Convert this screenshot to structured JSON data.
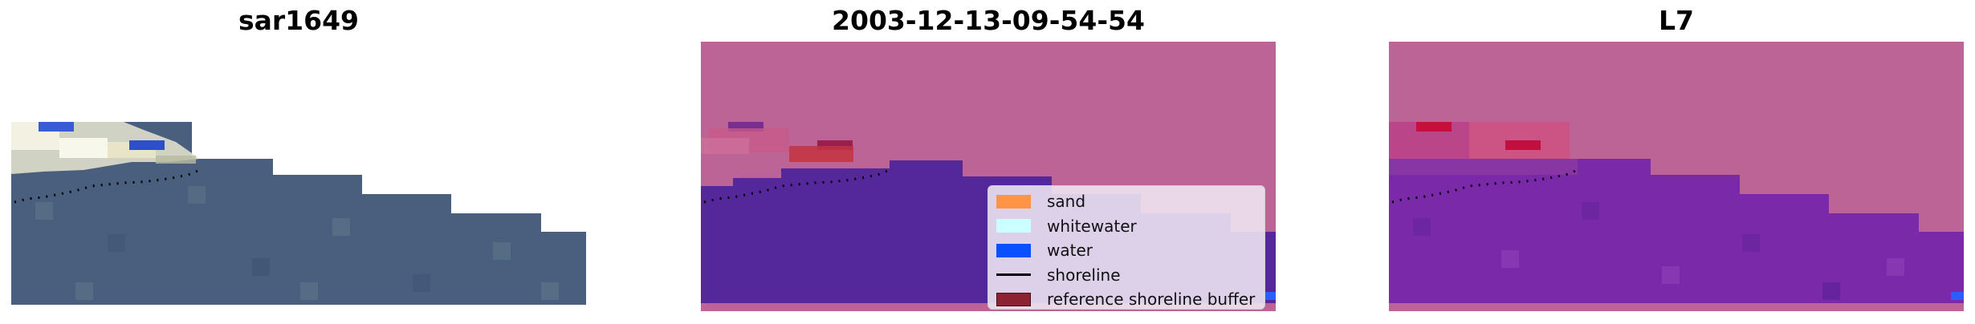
{
  "panels": [
    {
      "title": "sar1649"
    },
    {
      "title": "2003-12-13-09-54-54"
    },
    {
      "title": "L7"
    }
  ],
  "legend": {
    "items": [
      {
        "label": "sand",
        "color": "#ff9447",
        "kind": "patch"
      },
      {
        "label": "whitewater",
        "color": "#ccffff",
        "kind": "patch"
      },
      {
        "label": "water",
        "color": "#0a50ff",
        "kind": "patch"
      },
      {
        "label": "shoreline",
        "color": "#000000",
        "kind": "line"
      },
      {
        "label": "reference shoreline buffer",
        "color": "#8b2332",
        "kind": "patch"
      }
    ]
  },
  "colors": {
    "land_overlay": "#bd6497",
    "water_class": "#54279a",
    "water_overlay_l7": "#7a2aa8",
    "ocean_rgb": "#4a5f7e",
    "whitewater_rgb": "#f3f1dc",
    "buffer_overlay": "#c0304a"
  }
}
